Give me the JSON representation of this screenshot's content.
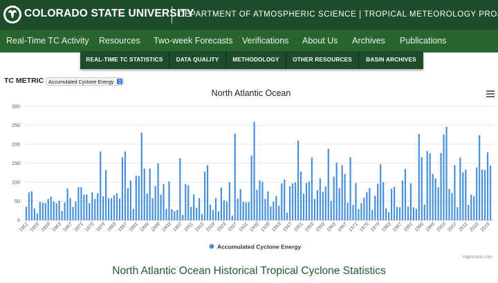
{
  "header": {
    "university": "COLORADO STATE UNIVERSITY",
    "department": "DEPARTMENT OF ATMOSPHERIC SCIENCE | TROPICAL METEOROLOGY PROJECT",
    "logo_icon": "ram-logo-icon"
  },
  "main_nav": {
    "items": [
      "Real-Time TC Activity",
      "Resources",
      "Two-week Forecasts",
      "Verifications",
      "About Us",
      "Archives",
      "Publications"
    ]
  },
  "sub_nav": {
    "items": [
      "REAL-TIME TC STATISTICS",
      "DATA QUALITY",
      "METHODOLOGY",
      "OTHER RESOURCES",
      "BASIN ARCHIVES"
    ]
  },
  "metric": {
    "label": "TC METRIC",
    "selected": "Accumulated Cyclone Energy"
  },
  "chart_data": {
    "type": "bar",
    "title": "North Atlantic Ocean",
    "xlabel": "",
    "ylabel": "",
    "ylim": [
      0,
      300
    ],
    "yticks": [
      0,
      50,
      100,
      150,
      200,
      250,
      300
    ],
    "x_start": 1851,
    "x_end": 2021,
    "xticks": [
      "1851",
      "1855",
      "1859",
      "1863",
      "1867",
      "1871",
      "1875",
      "1879",
      "1883",
      "1887",
      "1891",
      "1895",
      "1899",
      "1903",
      "1907",
      "1911",
      "1915",
      "1919",
      "1923",
      "1927",
      "1931",
      "1935",
      "1939",
      "1943",
      "1947",
      "1951",
      "1955",
      "1959",
      "1963",
      "1967",
      "1971",
      "1975",
      "1979",
      "1983",
      "1987",
      "1991",
      "1995",
      "1999",
      "2003",
      "2007",
      "2011",
      "2015",
      "2019"
    ],
    "grid": true,
    "legend_position": "bottom-center",
    "color": "#4a90d9",
    "series": [
      {
        "name": "Accumulated Cyclone Energy",
        "values": [
          36,
          73,
          76,
          31,
          18,
          48,
          46,
          45,
          56,
          62,
          49,
          45,
          51,
          24,
          47,
          84,
          58,
          35,
          49,
          87,
          87,
          67,
          68,
          45,
          73,
          56,
          71,
          181,
          63,
          132,
          58,
          58,
          66,
          71,
          57,
          166,
          181,
          84,
          104,
          30,
          117,
          116,
          231,
          136,
          70,
          136,
          58,
          90,
          150,
          67,
          95,
          30,
          102,
          29,
          24,
          27,
          163,
          14,
          95,
          92,
          35,
          68,
          33,
          58,
          16,
          128,
          145,
          41,
          27,
          58,
          23,
          86,
          52,
          49,
          100,
          12,
          228,
          57,
          82,
          49,
          47,
          48,
          170,
          259,
          80,
          105,
          101,
          56,
          76,
          36,
          49,
          64,
          38,
          97,
          107,
          20,
          89,
          97,
          100,
          210,
          128,
          70,
          98,
          102,
          165,
          56,
          79,
          110,
          75,
          89,
          188,
          51,
          115,
          152,
          84,
          145,
          122,
          46,
          166,
          40,
          98,
          29,
          45,
          59,
          74,
          85,
          27,
          64,
          96,
          147,
          100,
          31,
          21,
          83,
          88,
          35,
          34,
          104,
          135,
          36,
          97,
          34,
          30,
          227,
          166,
          41,
          182,
          176,
          122,
          110,
          87,
          177,
          226,
          246,
          82,
          72,
          145,
          34,
          165,
          126,
          133,
          40,
          67,
          63,
          139,
          224,
          133,
          132,
          179,
          144,
          0
        ]
      }
    ]
  },
  "highcharts_credit": "Highcharts.com",
  "chart_menu_icon": "hamburger-menu-icon",
  "page_heading": "North Atlantic Ocean Historical Tropical Cyclone Statistics"
}
